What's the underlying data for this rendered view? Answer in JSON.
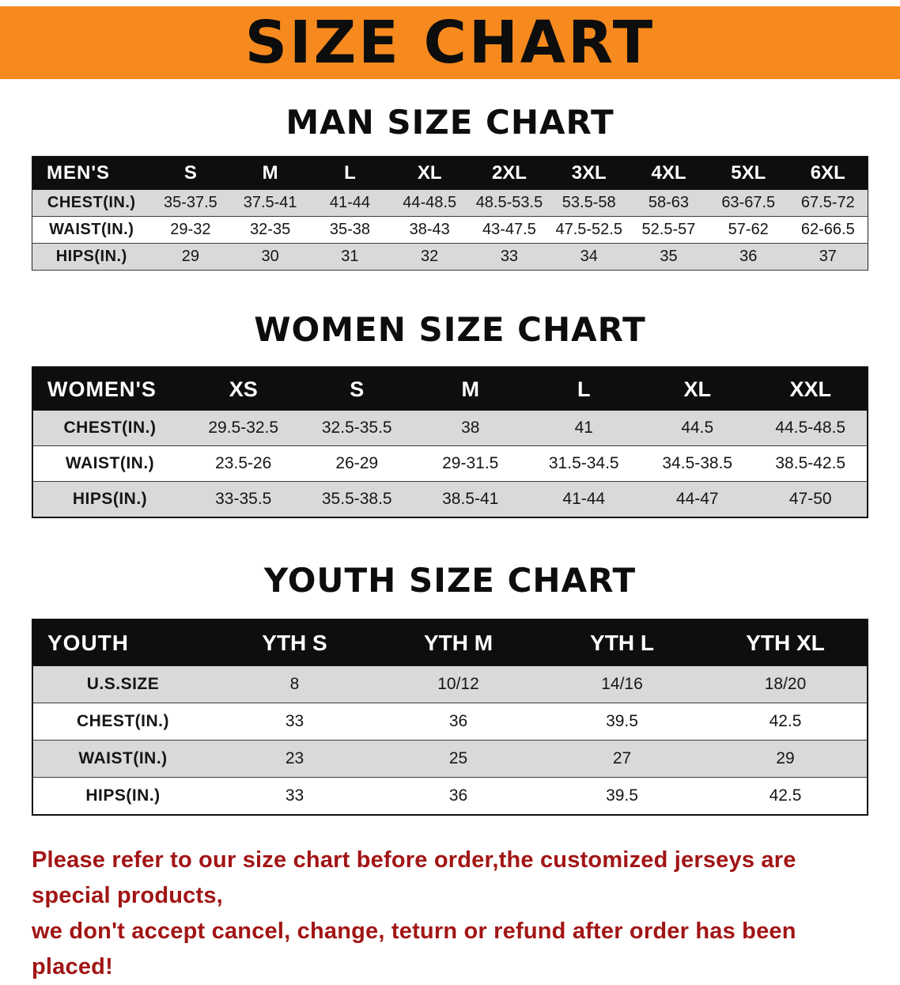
{
  "banner": {
    "title": "SIZE CHART"
  },
  "colors": {
    "banner_bg": "#f68a1e",
    "header_bg": "#0e0e0e",
    "row_alt": "#d9d9d9",
    "footer_text": "#a21515"
  },
  "sections": [
    {
      "id": "men",
      "title": "MAN SIZE CHART",
      "table": {
        "corner": "MEN'S",
        "columns": [
          "S",
          "M",
          "L",
          "XL",
          "2XL",
          "3XL",
          "4XL",
          "5XL",
          "6XL"
        ],
        "rows": [
          {
            "label": "CHEST(IN.)",
            "values": [
              "35-37.5",
              "37.5-41",
              "41-44",
              "44-48.5",
              "48.5-53.5",
              "53.5-58",
              "58-63",
              "63-67.5",
              "67.5-72"
            ]
          },
          {
            "label": "WAIST(IN.)",
            "values": [
              "29-32",
              "32-35",
              "35-38",
              "38-43",
              "43-47.5",
              "47.5-52.5",
              "52.5-57",
              "57-62",
              "62-66.5"
            ]
          },
          {
            "label": "HIPS(IN.)",
            "values": [
              "29",
              "30",
              "31",
              "32",
              "33",
              "34",
              "35",
              "36",
              "37"
            ]
          }
        ]
      }
    },
    {
      "id": "women",
      "title": "WOMEN SIZE CHART",
      "table": {
        "corner": "WOMEN'S",
        "columns": [
          "XS",
          "S",
          "M",
          "L",
          "XL",
          "XXL"
        ],
        "rows": [
          {
            "label": "CHEST(IN.)",
            "values": [
              "29.5-32.5",
              "32.5-35.5",
              "38",
              "41",
              "44.5",
              "44.5-48.5"
            ]
          },
          {
            "label": "WAIST(IN.)",
            "values": [
              "23.5-26",
              "26-29",
              "29-31.5",
              "31.5-34.5",
              "34.5-38.5",
              "38.5-42.5"
            ]
          },
          {
            "label": "HIPS(IN.)",
            "values": [
              "33-35.5",
              "35.5-38.5",
              "38.5-41",
              "41-44",
              "44-47",
              "47-50"
            ]
          }
        ]
      }
    },
    {
      "id": "youth",
      "title": "YOUTH SIZE CHART",
      "table": {
        "corner": "YOUTH",
        "columns": [
          "YTH S",
          "YTH M",
          "YTH L",
          "YTH XL"
        ],
        "rows": [
          {
            "label": "U.S.SIZE",
            "values": [
              "8",
              "10/12",
              "14/16",
              "18/20"
            ]
          },
          {
            "label": "CHEST(IN.)",
            "values": [
              "33",
              "36",
              "39.5",
              "42.5"
            ]
          },
          {
            "label": "WAIST(IN.)",
            "values": [
              "23",
              "25",
              "27",
              "29"
            ]
          },
          {
            "label": "HIPS(IN.)",
            "values": [
              "33",
              "36",
              "39.5",
              "42.5"
            ]
          }
        ]
      }
    }
  ],
  "footer": {
    "lines": [
      "Please refer to our size chart before order,the customized jerseys are special products,",
      "we don't accept cancel, change, teturn or refund after order has been placed!"
    ]
  }
}
